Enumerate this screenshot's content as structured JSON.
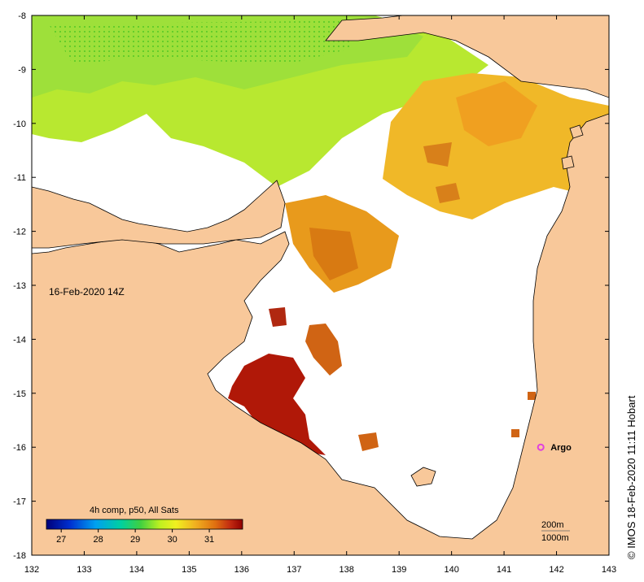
{
  "map": {
    "timestamp_label": "16-Feb-2020 14Z",
    "credit_label": "© IMOS 18-Feb-2020 11:11 Hobart",
    "x_ticks": [
      "132",
      "133",
      "134",
      "135",
      "136",
      "137",
      "138",
      "139",
      "140",
      "141",
      "142",
      "143"
    ],
    "y_ticks": [
      "-8",
      "-9",
      "-10",
      "-11",
      "-12",
      "-13",
      "-14",
      "-15",
      "-16",
      "-17",
      "-18"
    ],
    "argo": {
      "label": "Argo",
      "lon": 141.7,
      "lat": -16.0,
      "color": "#e040e0"
    },
    "colorbar": {
      "title": "4h comp, p50, All Sats",
      "tick_labels": [
        "27",
        "28",
        "29",
        "30",
        "31"
      ],
      "min": 26.6,
      "max": 31.9
    },
    "scale_legend": {
      "line1": "200m",
      "line2": "1000m"
    },
    "colors": {
      "land": "#f8c89a",
      "no_data": "#ffffff",
      "cool_sst": "#9ee03a",
      "warm_sst": "#f0b020",
      "hot_sst": "#b01808"
    }
  }
}
